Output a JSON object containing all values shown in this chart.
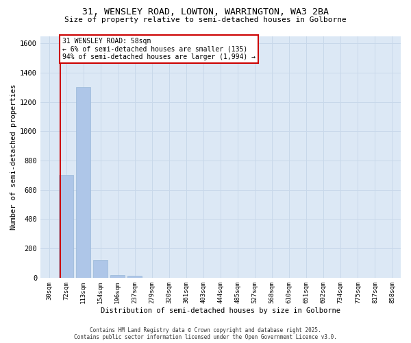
{
  "title_line1": "31, WENSLEY ROAD, LOWTON, WARRINGTON, WA3 2BA",
  "title_line2": "Size of property relative to semi-detached houses in Golborne",
  "xlabel": "Distribution of semi-detached houses by size in Golborne",
  "ylabel": "Number of semi-detached properties",
  "categories": [
    "30sqm",
    "72sqm",
    "113sqm",
    "154sqm",
    "196sqm",
    "237sqm",
    "279sqm",
    "320sqm",
    "361sqm",
    "403sqm",
    "444sqm",
    "485sqm",
    "527sqm",
    "568sqm",
    "610sqm",
    "651sqm",
    "692sqm",
    "734sqm",
    "775sqm",
    "817sqm",
    "858sqm"
  ],
  "values": [
    0,
    700,
    1300,
    120,
    20,
    14,
    0,
    0,
    0,
    0,
    0,
    0,
    0,
    0,
    0,
    0,
    0,
    0,
    0,
    0,
    0
  ],
  "bar_color": "#aec6e8",
  "bar_edge_color": "#9ab8d8",
  "ylim": [
    0,
    1650
  ],
  "yticks": [
    0,
    200,
    400,
    600,
    800,
    1000,
    1200,
    1400,
    1600
  ],
  "bin_edges": [
    30,
    72,
    113,
    154,
    196,
    237,
    279,
    320,
    361,
    403,
    444,
    485,
    527,
    568,
    610,
    651,
    692,
    734,
    775,
    817,
    858
  ],
  "property_sqm": 58,
  "annotation_line1": "31 WENSLEY ROAD: 58sqm",
  "annotation_line2": "← 6% of semi-detached houses are smaller (135)",
  "annotation_line3": "94% of semi-detached houses are larger (1,994) →",
  "red_line_color": "#cc0000",
  "grid_color": "#c8d8ea",
  "background_color": "#dce8f5",
  "footnote_line1": "Contains HM Land Registry data © Crown copyright and database right 2025.",
  "footnote_line2": "Contains public sector information licensed under the Open Government Licence v3.0."
}
